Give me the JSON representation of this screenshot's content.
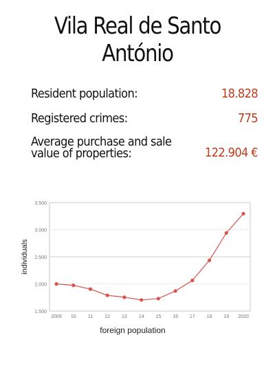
{
  "title": "Vila Real de Santo António",
  "stats": [
    {
      "label": "Resident population:",
      "value": "18.828"
    },
    {
      "label": "Registered crimes:",
      "value": "775"
    },
    {
      "label": "Average purchase and sale value of properties:",
      "value": "122.904 €"
    }
  ],
  "colors": {
    "accent": "#c0391b",
    "series": "#d9534f"
  },
  "chart_data": {
    "type": "line",
    "x": [
      "2009",
      "10",
      "11",
      "12",
      "13",
      "14",
      "15",
      "16",
      "17",
      "18",
      "19",
      "2020"
    ],
    "series": [
      {
        "values": [
          2000,
          1975,
          1905,
          1790,
          1755,
          1705,
          1730,
          1870,
          2065,
          2435,
          2940,
          3295
        ]
      }
    ],
    "ylim": [
      1500,
      3500
    ],
    "yticks": [
      "1.500",
      "2.000",
      "2.500",
      "3.000",
      "3.500"
    ],
    "xlabel": "foreign population",
    "ylabel": "individuals",
    "grid": true
  }
}
